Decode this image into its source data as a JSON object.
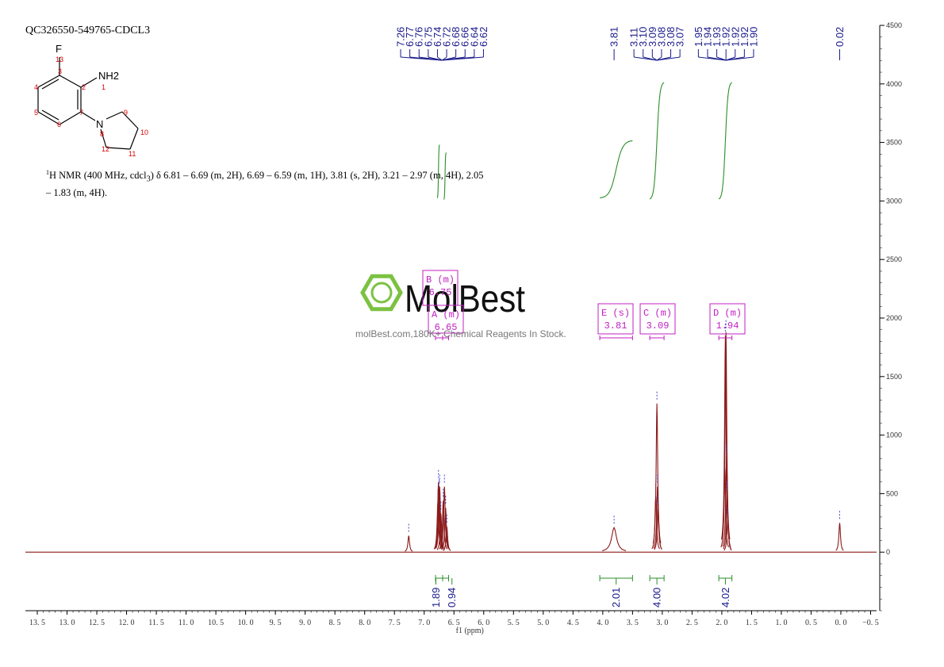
{
  "sample_id": "QC326550-549765-CDCL3",
  "nmr_description": {
    "prefix": "1",
    "text": "H NMR (400 MHz, cdcl",
    "sub": "3",
    "rest": ") δ 6.81 – 6.69 (m, 2H), 6.69 – 6.59 (m, 1H), 3.81 (s, 2H), 3.21 – 2.97 (m, 4H), 2.05 – 1.83 (m, 4H)."
  },
  "structure": {
    "atoms": [
      {
        "label": "F",
        "num": "13"
      },
      {
        "label": "NH2",
        "num": "1"
      },
      {
        "label": "N",
        "num": "8"
      }
    ],
    "ring_numbers": [
      "2",
      "3",
      "4",
      "5",
      "6",
      "7",
      "9",
      "10",
      "11",
      "12"
    ]
  },
  "watermark": {
    "brand": "MolBest",
    "tagline": "molBest.com,180K+ Chemical Reagents In Stock."
  },
  "colors": {
    "spectrum": "#8b1a1a",
    "integral": "#2a8f2a",
    "peak_label": "#1a1a8c",
    "multiplet": "#c020c0",
    "watermark_green": "#7cc242"
  },
  "chart_data": {
    "type": "line",
    "xlabel": "f1 (ppm)",
    "xlim": [
      13.7,
      -0.6
    ],
    "ylim": [
      -500,
      4500
    ],
    "x_ticks": [
      "13.5",
      "13.0",
      "12.5",
      "12.0",
      "11.5",
      "11.0",
      "10.5",
      "10.0",
      "9.5",
      "9.0",
      "8.5",
      "8.0",
      "7.5",
      "7.0",
      "6.5",
      "6.0",
      "5.5",
      "5.0",
      "4.5",
      "4.0",
      "3.5",
      "3.0",
      "2.5",
      "2.0",
      "1.5",
      "1.0",
      "0.5",
      "0.0",
      "-0.5"
    ],
    "y_ticks": [
      "4500",
      "4000",
      "3500",
      "3000",
      "2500",
      "2000",
      "1500",
      "1000",
      "500",
      "0"
    ],
    "peaks": [
      {
        "ppm": 7.26,
        "height": 140,
        "width": 0.006
      },
      {
        "ppm": 6.77,
        "height": 430,
        "width": 0.006
      },
      {
        "ppm": 6.76,
        "height": 600,
        "width": 0.006
      },
      {
        "ppm": 6.75,
        "height": 520,
        "width": 0.006
      },
      {
        "ppm": 6.74,
        "height": 560,
        "width": 0.006
      },
      {
        "ppm": 6.72,
        "height": 330,
        "width": 0.006
      },
      {
        "ppm": 6.68,
        "height": 440,
        "width": 0.006
      },
      {
        "ppm": 6.66,
        "height": 560,
        "width": 0.006
      },
      {
        "ppm": 6.64,
        "height": 380,
        "width": 0.006
      },
      {
        "ppm": 6.62,
        "height": 220,
        "width": 0.006
      },
      {
        "ppm": 3.81,
        "height": 210,
        "width": 0.05
      },
      {
        "ppm": 3.11,
        "height": 480,
        "width": 0.006
      },
      {
        "ppm": 3.09,
        "height": 1270,
        "width": 0.007
      },
      {
        "ppm": 3.08,
        "height": 560,
        "width": 0.006
      },
      {
        "ppm": 3.07,
        "height": 380,
        "width": 0.006
      },
      {
        "ppm": 1.95,
        "height": 720,
        "width": 0.006
      },
      {
        "ppm": 1.94,
        "height": 1850,
        "width": 0.006
      },
      {
        "ppm": 1.93,
        "height": 1880,
        "width": 0.006
      },
      {
        "ppm": 1.92,
        "height": 820,
        "width": 0.006
      },
      {
        "ppm": 1.91,
        "height": 500,
        "width": 0.006
      },
      {
        "ppm": 1.9,
        "height": 280,
        "width": 0.006
      },
      {
        "ppm": 0.02,
        "height": 250,
        "width": 0.004
      }
    ],
    "peak_labels": [
      "7.26",
      "6.77",
      "6.76",
      "6.75",
      "6.74",
      "6.72",
      "6.68",
      "6.66",
      "6.64",
      "6.62",
      "3.81",
      "3.11",
      "3.10",
      "3.09",
      "3.08",
      "3.08",
      "3.07",
      "1.95",
      "1.94",
      "1.93",
      "1.92",
      "1.92",
      "1.92",
      "1.90",
      "0.02"
    ],
    "peak_label_groups": [
      {
        "from": 0,
        "to": 10,
        "target": 6.7
      },
      {
        "from": 10,
        "to": 11,
        "target": 3.81
      },
      {
        "from": 11,
        "to": 17,
        "target": 3.09
      },
      {
        "from": 17,
        "to": 24,
        "target": 1.93
      },
      {
        "from": 24,
        "to": 25,
        "target": 0.02
      }
    ],
    "integrals": [
      {
        "value": "1.89",
        "from": 6.81,
        "to": 6.69
      },
      {
        "value": "0.94",
        "from": 6.69,
        "to": 6.59
      },
      {
        "value": "2.01",
        "from": 4.05,
        "to": 3.5
      },
      {
        "value": "4.00",
        "from": 3.21,
        "to": 2.97
      },
      {
        "value": "4.02",
        "from": 2.05,
        "to": 1.83
      }
    ],
    "multiplets": [
      {
        "name": "B (m)",
        "shift": "6.75",
        "ppm": 6.75,
        "range": [
          6.81,
          6.69
        ]
      },
      {
        "name": "A (m)",
        "shift": "6.65",
        "ppm": 6.65,
        "range": [
          6.69,
          6.59
        ]
      },
      {
        "name": "E (s)",
        "shift": "3.81",
        "ppm": 3.81,
        "range": [
          4.05,
          3.5
        ]
      },
      {
        "name": "C (m)",
        "shift": "3.09",
        "ppm": 3.09,
        "range": [
          3.21,
          2.97
        ]
      },
      {
        "name": "D (m)",
        "shift": "1.94",
        "ppm": 1.94,
        "range": [
          2.05,
          1.83
        ]
      }
    ]
  }
}
